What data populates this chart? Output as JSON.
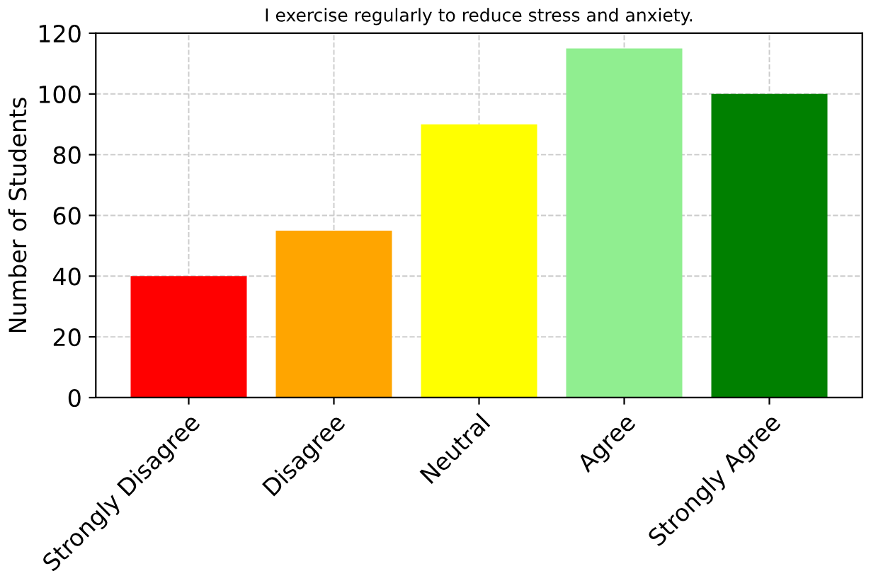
{
  "chart_data": {
    "type": "bar",
    "title": "I exercise regularly to reduce stress and anxiety.",
    "ylabel": "Number of Students",
    "categories": [
      "Strongly Disagree",
      "Disagree",
      "Neutral",
      "Agree",
      "Strongly Agree"
    ],
    "values": [
      40,
      55,
      90,
      115,
      100
    ],
    "colors": [
      "#ff0000",
      "#ffa500",
      "#ffff00",
      "#90ee90",
      "#008000"
    ],
    "ylim": [
      0,
      120
    ],
    "yticks": [
      0,
      20,
      40,
      60,
      80,
      100,
      120
    ],
    "grid": true
  }
}
